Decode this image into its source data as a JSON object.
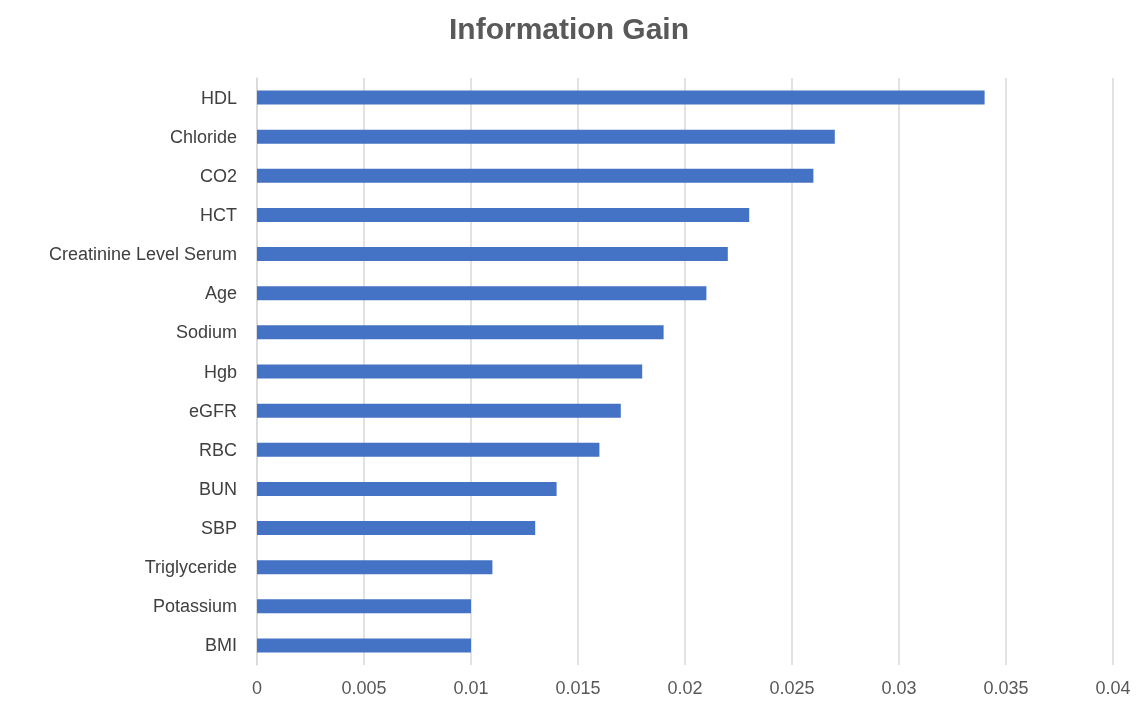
{
  "chart_data": {
    "type": "bar",
    "orientation": "horizontal",
    "title": "Information Gain",
    "categories": [
      "HDL",
      "Chloride",
      "CO2",
      "HCT",
      "Creatinine Level Serum",
      "Age",
      "Sodium",
      "Hgb",
      "eGFR",
      "RBC",
      "BUN",
      "SBP",
      "Triglyceride",
      "Potassium",
      "BMI"
    ],
    "values": [
      0.034,
      0.027,
      0.026,
      0.023,
      0.022,
      0.021,
      0.019,
      0.018,
      0.017,
      0.016,
      0.014,
      0.013,
      0.011,
      0.01,
      0.01
    ],
    "color": "#4472c4",
    "xlim": [
      0,
      0.04
    ],
    "xticks": [
      0,
      0.005,
      0.01,
      0.015,
      0.02,
      0.025,
      0.03,
      0.035,
      0.04
    ],
    "grid": "x"
  }
}
